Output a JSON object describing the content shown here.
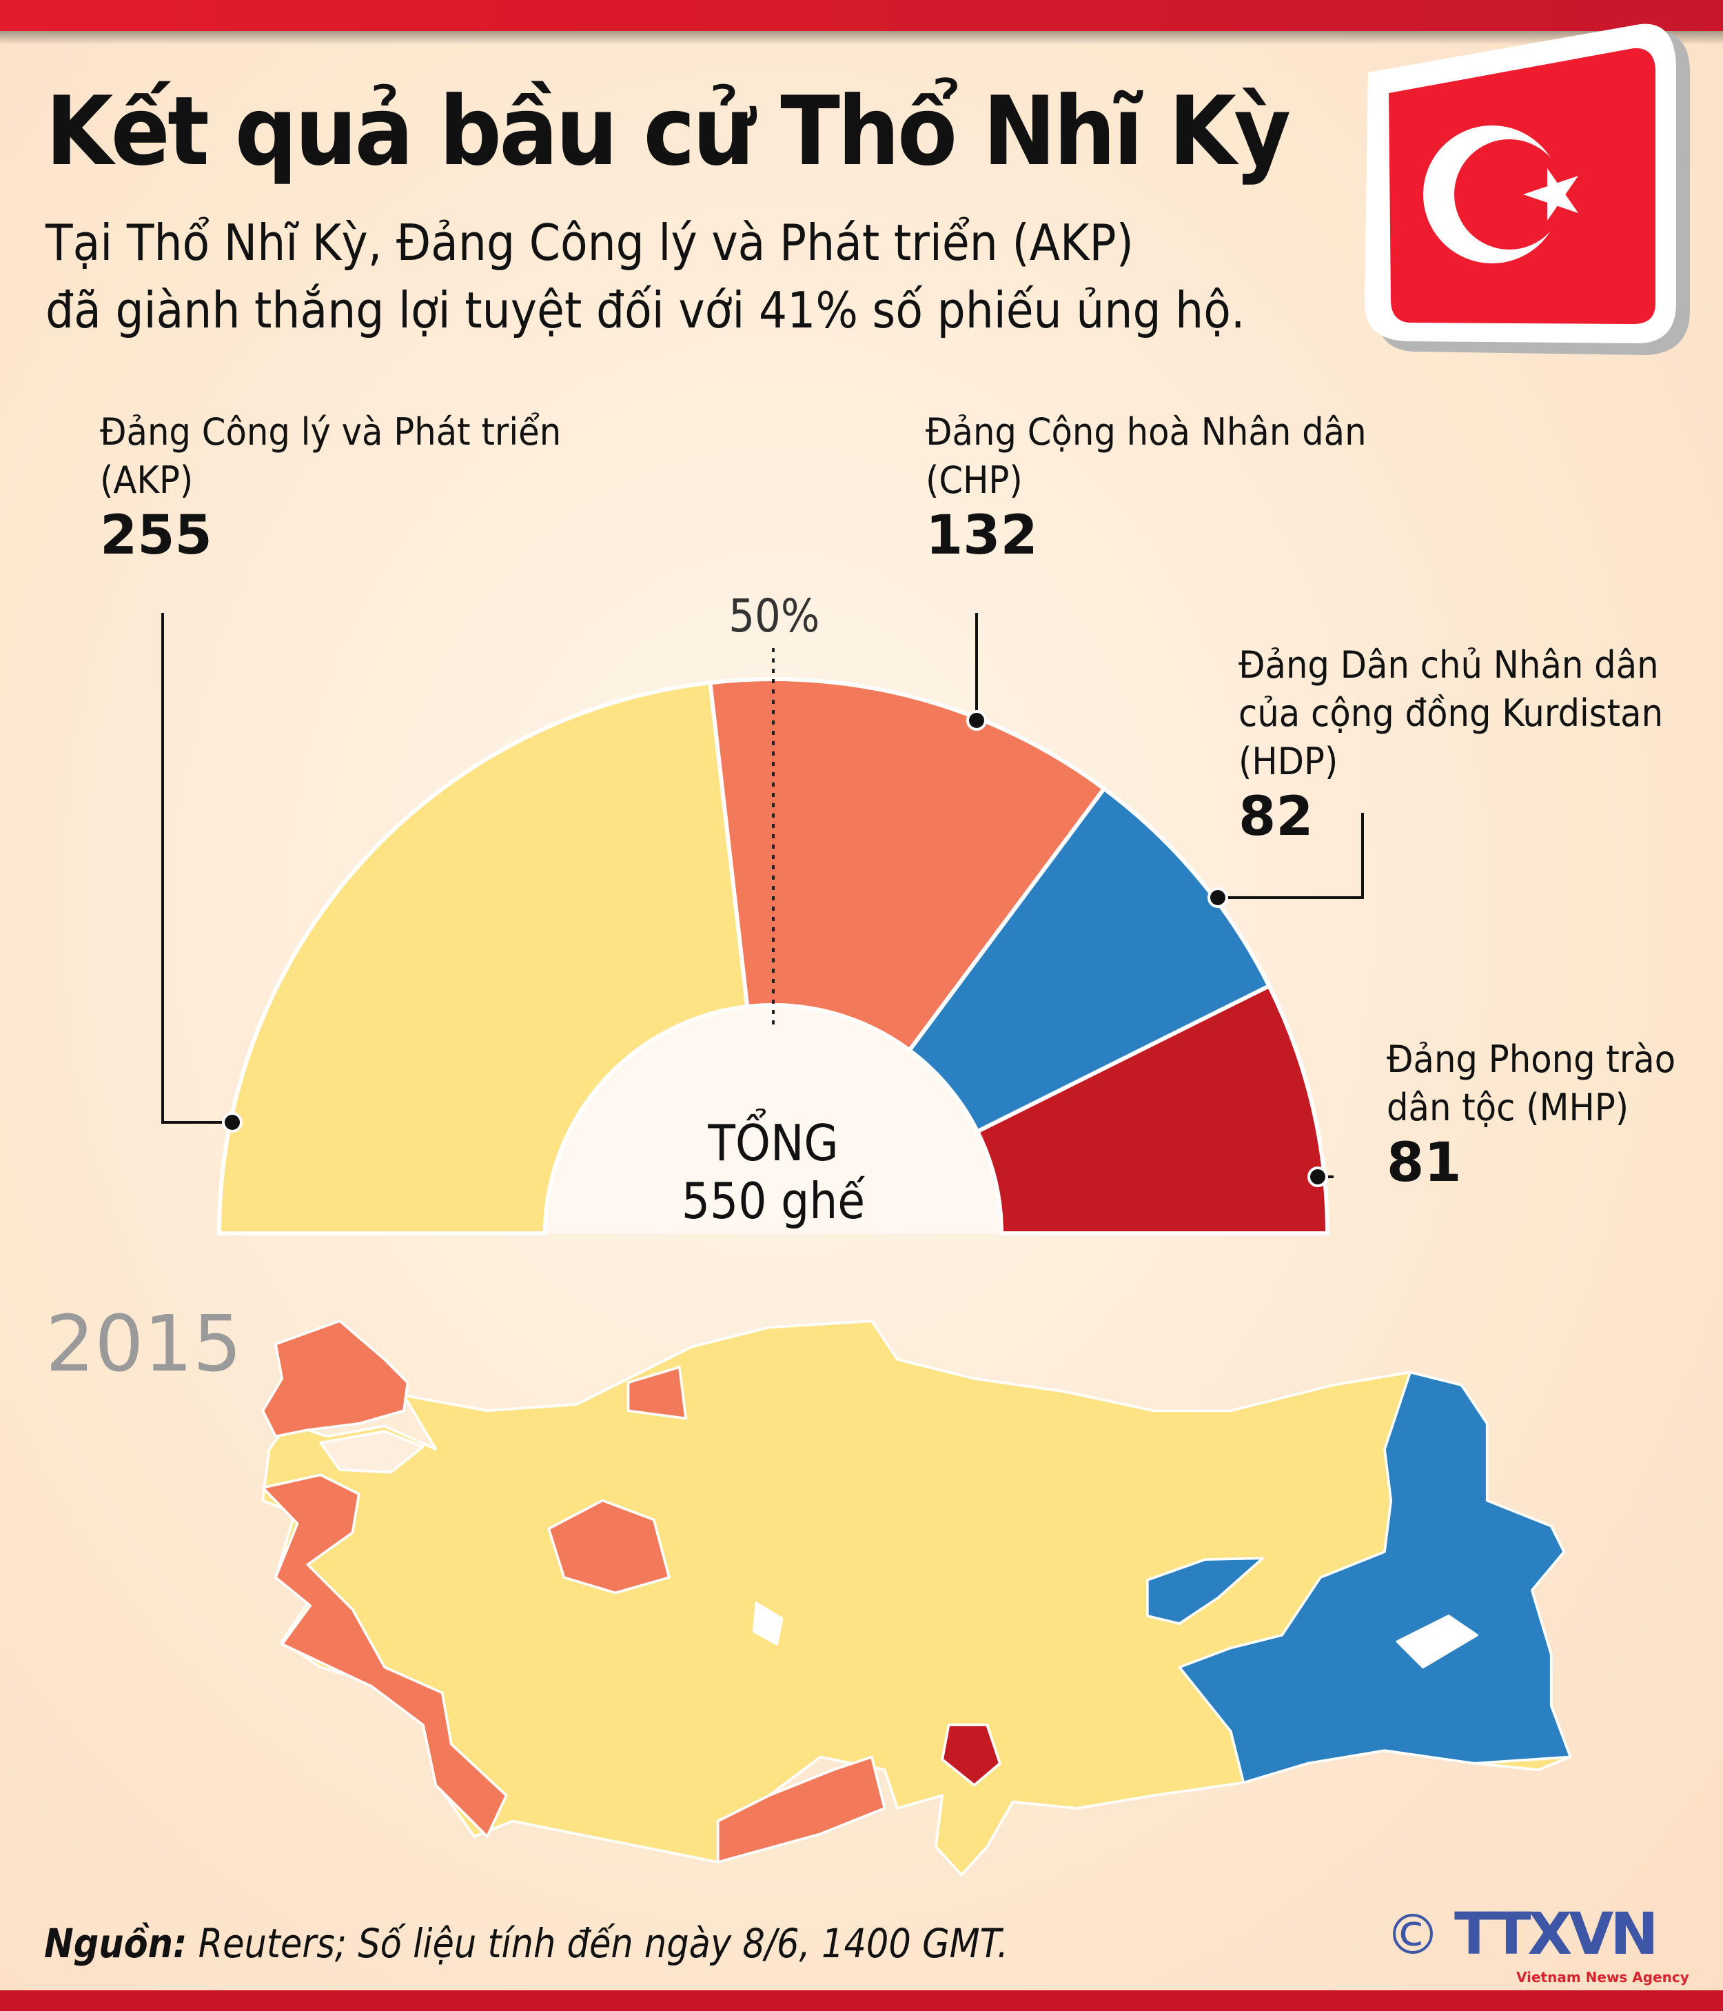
{
  "title": "Kết quả bầu cử Thổ Nhĩ Kỳ",
  "subtitle": [
    "Tại Thổ Nhĩ Kỳ, Đảng Công lý và Phát triển (AKP)",
    "đã giành thắng lợi tuyệt đối với 41% số phiếu ủng hộ."
  ],
  "flag_icon": "turkey-flag-icon",
  "chart_data": {
    "type": "pie",
    "subtype": "half-donut",
    "categories": [
      "Đảng Công lý và Phát triển\n(AKP)",
      "Đảng Cộng hoà Nhân dân\n(CHP)",
      "Đảng Dân chủ Nhân dân\ncủa cộng đồng Kurdistan\n(HDP)",
      "Đảng Phong trào\ndân tộc (MHP)"
    ],
    "values": [
      255,
      132,
      82,
      81
    ],
    "colors": [
      "#fee385",
      "#f27a5a",
      "#2a80c0",
      "#c41a24"
    ],
    "threshold_label": "50%",
    "center_label": [
      "TỔNG",
      "550 ghế"
    ]
  },
  "map": {
    "year": "2015",
    "colors": {
      "AKP": "#fee385",
      "CHP": "#f27a5a",
      "HDP": "#2a80c0",
      "MHP": "#c41a24"
    }
  },
  "footer": {
    "source_label": "Nguồn:",
    "source_text": " Reuters; Số liệu tính đến ngày 8/6, 1400 GMT.",
    "logo": "TTXVN",
    "logo_sub": "Vietnam News Agency",
    "copyright": "©"
  }
}
